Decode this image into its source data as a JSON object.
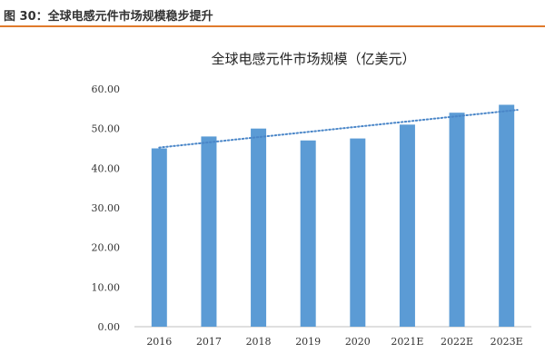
{
  "caption": "图 30：全球电感元件市场规模稳步提升",
  "colors": {
    "bar": "#5b9bd5",
    "trend": "#4a86c8",
    "accent": "#e07a2b"
  },
  "chart_data": {
    "type": "bar",
    "title": "全球电感元件市场规模（亿美元）",
    "categories": [
      "2016",
      "2017",
      "2018",
      "2019",
      "2020",
      "2021E",
      "2022E",
      "2023E"
    ],
    "values": [
      45.0,
      48.0,
      50.0,
      47.0,
      47.5,
      51.0,
      54.0,
      56.0
    ],
    "ylim": [
      0,
      60
    ],
    "yticks": [
      "0.00",
      "10.00",
      "20.00",
      "30.00",
      "40.00",
      "50.00",
      "60.00"
    ],
    "trendline": {
      "type": "linear",
      "style": "dotted"
    },
    "xlabel": "",
    "ylabel": ""
  }
}
